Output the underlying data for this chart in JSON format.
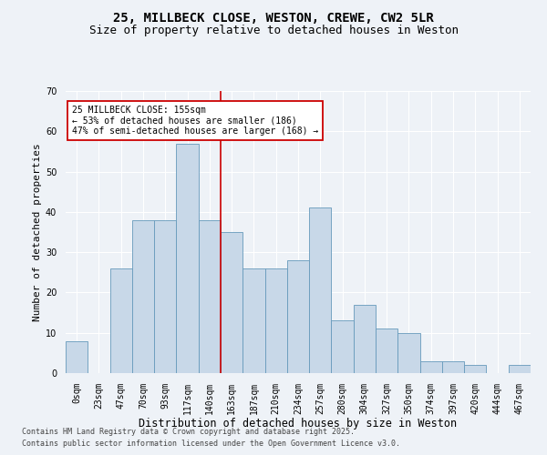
{
  "title1": "25, MILLBECK CLOSE, WESTON, CREWE, CW2 5LR",
  "title2": "Size of property relative to detached houses in Weston",
  "xlabel": "Distribution of detached houses by size in Weston",
  "ylabel": "Number of detached properties",
  "bin_labels": [
    "0sqm",
    "23sqm",
    "47sqm",
    "70sqm",
    "93sqm",
    "117sqm",
    "140sqm",
    "163sqm",
    "187sqm",
    "210sqm",
    "234sqm",
    "257sqm",
    "280sqm",
    "304sqm",
    "327sqm",
    "350sqm",
    "374sqm",
    "397sqm",
    "420sqm",
    "444sqm",
    "467sqm"
  ],
  "bar_heights": [
    8,
    0,
    26,
    38,
    38,
    57,
    38,
    35,
    26,
    26,
    28,
    41,
    13,
    17,
    11,
    10,
    3,
    3,
    2,
    0,
    2
  ],
  "bar_color": "#c8d8e8",
  "bar_edge_color": "#6699bb",
  "vline_x": 7.0,
  "annotation_line1": "25 MILLBECK CLOSE: 155sqm",
  "annotation_line2": "← 53% of detached houses are smaller (186)",
  "annotation_line3": "47% of semi-detached houses are larger (168) →",
  "annotation_box_color": "#ffffff",
  "annotation_box_edge": "#cc0000",
  "vline_color": "#cc0000",
  "ylim": [
    0,
    70
  ],
  "yticks": [
    0,
    10,
    20,
    30,
    40,
    50,
    60,
    70
  ],
  "bg_color": "#eef2f7",
  "footer1": "Contains HM Land Registry data © Crown copyright and database right 2025.",
  "footer2": "Contains public sector information licensed under the Open Government Licence v3.0.",
  "title1_fontsize": 10,
  "title2_fontsize": 9,
  "xlabel_fontsize": 8.5,
  "ylabel_fontsize": 8,
  "tick_fontsize": 7,
  "annotation_fontsize": 7,
  "footer_fontsize": 6
}
